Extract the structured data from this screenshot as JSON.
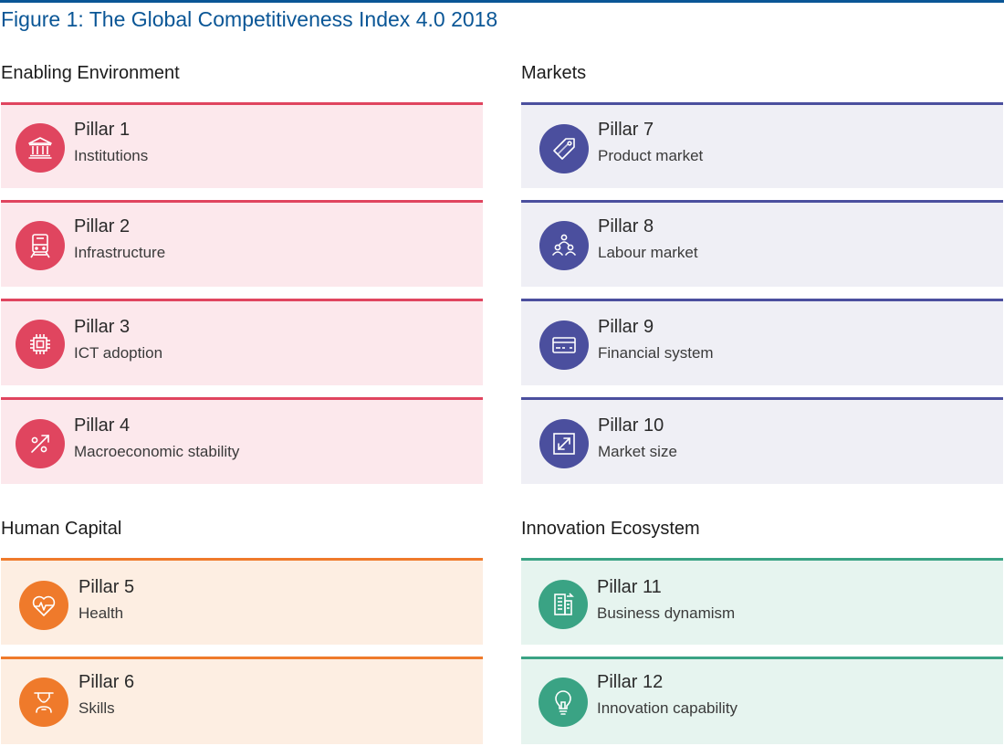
{
  "figure_title": "Figure 1: The Global Competitiveness Index 4.0 2018",
  "colors": {
    "title_blue": "#0a5696",
    "enabling_red": "#e0455f",
    "markets_blue": "#4b4f9e",
    "human_orange": "#ef7a2b",
    "innovation_green": "#3aa384"
  },
  "groups": {
    "enabling": {
      "title": "Enabling Environment",
      "pillars": [
        {
          "number": "Pillar 1",
          "name": "Institutions",
          "icon": "institution-building-icon"
        },
        {
          "number": "Pillar 2",
          "name": "Infrastructure",
          "icon": "train-icon"
        },
        {
          "number": "Pillar 3",
          "name": "ICT adoption",
          "icon": "microchip-icon"
        },
        {
          "number": "Pillar 4",
          "name": "Macroeconomic stability",
          "icon": "percent-trend-icon"
        }
      ]
    },
    "markets": {
      "title": "Markets",
      "pillars": [
        {
          "number": "Pillar 7",
          "name": "Product market",
          "icon": "price-tag-icon"
        },
        {
          "number": "Pillar 8",
          "name": "Labour market",
          "icon": "people-network-icon"
        },
        {
          "number": "Pillar 9",
          "name": "Financial system",
          "icon": "credit-card-icon"
        },
        {
          "number": "Pillar 10",
          "name": "Market size",
          "icon": "expand-arrows-icon"
        }
      ]
    },
    "human": {
      "title": "Human Capital",
      "pillars": [
        {
          "number": "Pillar 5",
          "name": "Health",
          "icon": "heartbeat-icon"
        },
        {
          "number": "Pillar 6",
          "name": "Skills",
          "icon": "graduate-icon"
        }
      ]
    },
    "innovation": {
      "title": "Innovation Ecosystem",
      "pillars": [
        {
          "number": "Pillar 11",
          "name": "Business dynamism",
          "icon": "office-building-icon"
        },
        {
          "number": "Pillar 12",
          "name": "Innovation capability",
          "icon": "lightbulb-icon"
        }
      ]
    }
  }
}
